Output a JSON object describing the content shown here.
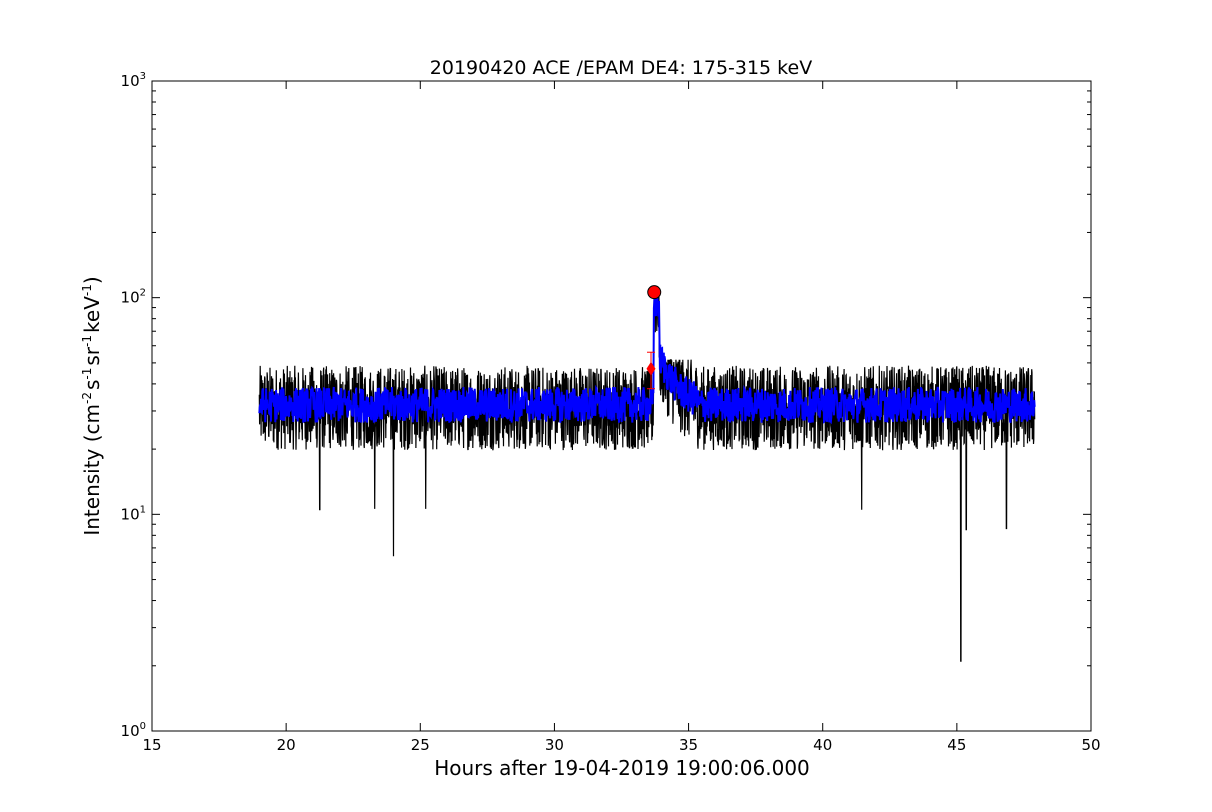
{
  "chart_data": {
    "type": "line",
    "title": "20190420 ACE /EPAM DE4: 175-315 keV",
    "xlabel": "Hours after 19-04-2019 19:00:06.000",
    "ylabel_main": "Intensity (cm",
    "ylabel_parts": [
      "-2",
      "s",
      "-1",
      "sr",
      "-1",
      "keV",
      "-1",
      ")"
    ],
    "xlim": [
      15,
      50
    ],
    "ylim": [
      1,
      1000
    ],
    "yscale": "log",
    "x_ticks": [
      "15",
      "20",
      "25",
      "30",
      "35",
      "40",
      "45",
      "50"
    ],
    "y_ticks": [
      {
        "base": "10",
        "exp": "0"
      },
      {
        "base": "10",
        "exp": "1"
      },
      {
        "base": "10",
        "exp": "2"
      },
      {
        "base": "10",
        "exp": "3"
      }
    ],
    "grid": false,
    "series": [
      {
        "color": "#000000",
        "style": "raw",
        "x_range": [
          19.0,
          47.9
        ],
        "baseline": 31,
        "spread_low": 19,
        "spread_high": 47,
        "spikes_down": [
          {
            "x": 21.25,
            "y": 10.5
          },
          {
            "x": 23.3,
            "y": 10.6
          },
          {
            "x": 24.0,
            "y": 6.4
          },
          {
            "x": 25.2,
            "y": 10.6
          },
          {
            "x": 41.45,
            "y": 10.5
          },
          {
            "x": 45.15,
            "y": 2.1
          },
          {
            "x": 45.35,
            "y": 8.5
          },
          {
            "x": 46.85,
            "y": 8.6
          }
        ],
        "peak": {
          "x": 33.75,
          "y": 100
        }
      },
      {
        "color": "#0000ff",
        "style": "smoothed",
        "x_range": [
          19.0,
          47.9
        ],
        "baseline": 32,
        "peak": {
          "x": 33.75,
          "y": 95
        }
      }
    ],
    "markers": [
      {
        "kind": "circle",
        "color": "#ff0000",
        "x": 33.72,
        "y": 106
      },
      {
        "kind": "diamond",
        "color": "#ff0000",
        "x": 33.6,
        "y": 47
      },
      {
        "kind": "errorbar",
        "color": "#ff0000",
        "x": 33.6,
        "y_low": 38,
        "y_high": 56
      }
    ]
  }
}
